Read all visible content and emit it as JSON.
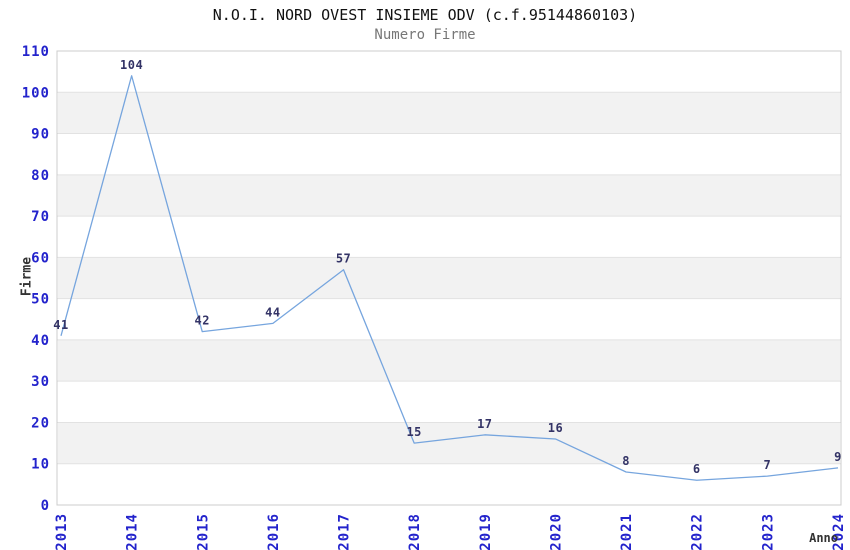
{
  "title": "N.O.I. NORD OVEST INSIEME ODV (c.f.95144860103)",
  "subtitle": "Numero Firme",
  "chart_data": {
    "type": "line",
    "title": "N.O.I. NORD OVEST INSIEME ODV (c.f.95144860103)",
    "subtitle": "Numero Firme",
    "x": [
      "2013",
      "2014",
      "2015",
      "2016",
      "2017",
      "2018",
      "2019",
      "2020",
      "2021",
      "2022",
      "2023",
      "2024"
    ],
    "values": [
      41,
      104,
      42,
      44,
      57,
      15,
      17,
      16,
      8,
      6,
      7,
      9
    ],
    "xlabel": "Anno",
    "ylabel": "Firme",
    "ylim": [
      0,
      110
    ],
    "ytick_step": 10,
    "grid": "horizontal-bands-alternating",
    "legend": "none",
    "colors": {
      "line": "#76a5de",
      "band": "#f2f2f2",
      "gridline": "#e2e2e2",
      "plot_border": "#cccccc",
      "tick_label": "#2323cc",
      "data_label": "#333366",
      "axis_title": "#333333",
      "title": "#111111",
      "subtitle": "#777777",
      "background": "#ffffff"
    }
  }
}
